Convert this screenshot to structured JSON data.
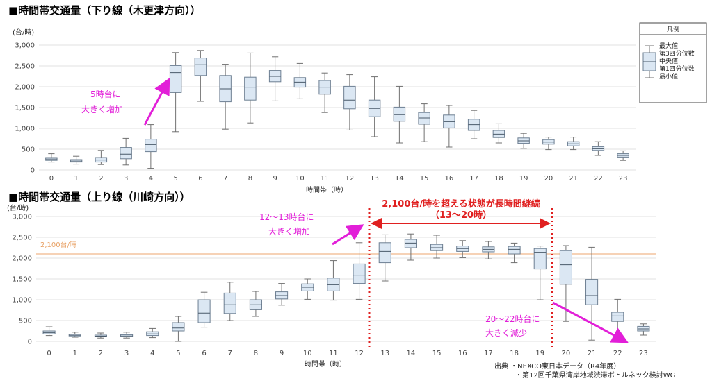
{
  "charts": [
    {
      "type": "box",
      "title": "■時間帯交通量（下り線（木更津方向））",
      "unit": "(台/時)",
      "xlabel": "時間帯（時）",
      "ylim": [
        0,
        3000
      ],
      "yticks": [
        0,
        500,
        1000,
        1500,
        2000,
        2500,
        3000
      ],
      "ytick_labels": [
        "0",
        "500",
        "1,000",
        "1,500",
        "2,000",
        "2,500",
        "3,000"
      ],
      "categories": [
        "0",
        "1",
        "2",
        "3",
        "4",
        "5",
        "6",
        "7",
        "8",
        "9",
        "10",
        "11",
        "12",
        "13",
        "14",
        "15",
        "16",
        "17",
        "18",
        "19",
        "20",
        "21",
        "22",
        "23"
      ],
      "boxes": [
        {
          "min": 190,
          "q1": 230,
          "median": 265,
          "q3": 300,
          "max": 390
        },
        {
          "min": 140,
          "q1": 190,
          "median": 215,
          "q3": 250,
          "max": 330
        },
        {
          "min": 130,
          "q1": 190,
          "median": 240,
          "q3": 300,
          "max": 470
        },
        {
          "min": 120,
          "q1": 270,
          "median": 380,
          "q3": 540,
          "max": 760
        },
        {
          "min": 40,
          "q1": 440,
          "median": 610,
          "q3": 740,
          "max": 1090
        },
        {
          "min": 920,
          "q1": 1860,
          "median": 2340,
          "q3": 2510,
          "max": 2820
        },
        {
          "min": 1650,
          "q1": 2270,
          "median": 2530,
          "q3": 2690,
          "max": 2870
        },
        {
          "min": 980,
          "q1": 1640,
          "median": 1950,
          "q3": 2270,
          "max": 2540
        },
        {
          "min": 1130,
          "q1": 1680,
          "median": 1990,
          "q3": 2230,
          "max": 2810
        },
        {
          "min": 1660,
          "q1": 2120,
          "median": 2250,
          "q3": 2390,
          "max": 2720
        },
        {
          "min": 1710,
          "q1": 1990,
          "median": 2110,
          "q3": 2220,
          "max": 2560
        },
        {
          "min": 1380,
          "q1": 1820,
          "median": 1990,
          "q3": 2150,
          "max": 2330
        },
        {
          "min": 960,
          "q1": 1470,
          "median": 1680,
          "q3": 2010,
          "max": 2290
        },
        {
          "min": 800,
          "q1": 1280,
          "median": 1480,
          "q3": 1680,
          "max": 2240
        },
        {
          "min": 650,
          "q1": 1170,
          "median": 1330,
          "q3": 1510,
          "max": 2010
        },
        {
          "min": 680,
          "q1": 1100,
          "median": 1250,
          "q3": 1380,
          "max": 1590
        },
        {
          "min": 550,
          "q1": 1010,
          "median": 1160,
          "q3": 1320,
          "max": 1550
        },
        {
          "min": 750,
          "q1": 950,
          "median": 1090,
          "q3": 1220,
          "max": 1430
        },
        {
          "min": 650,
          "q1": 780,
          "median": 860,
          "q3": 950,
          "max": 1110
        },
        {
          "min": 520,
          "q1": 640,
          "median": 700,
          "q3": 770,
          "max": 880
        },
        {
          "min": 490,
          "q1": 620,
          "median": 670,
          "q3": 730,
          "max": 790
        },
        {
          "min": 490,
          "q1": 580,
          "median": 630,
          "q3": 680,
          "max": 790
        },
        {
          "min": 350,
          "q1": 470,
          "median": 510,
          "q3": 560,
          "max": 680
        },
        {
          "min": 230,
          "q1": 310,
          "median": 350,
          "q3": 390,
          "max": 460
        }
      ],
      "annotations": [
        {
          "text_lines": [
            "5時台に",
            "大きく増加"
          ]
        }
      ],
      "legend": {
        "title": "凡例",
        "items": [
          "最大値",
          "第3四分位数",
          "中央値",
          "第1四分位数",
          "最小値"
        ]
      }
    },
    {
      "type": "box",
      "title": "■時間帯交通量（上り線（川崎方向））",
      "unit": "(台/時)",
      "xlabel": "時間帯（時）",
      "ylim": [
        0,
        3000
      ],
      "yticks": [
        0,
        500,
        1000,
        1500,
        2000,
        2500,
        3000
      ],
      "ytick_labels": [
        "0",
        "500",
        "1,000",
        "1,500",
        "2,000",
        "2,500",
        "3,000"
      ],
      "categories": [
        "0",
        "1",
        "2",
        "3",
        "4",
        "5",
        "6",
        "7",
        "8",
        "9",
        "10",
        "11",
        "12",
        "13",
        "14",
        "15",
        "16",
        "17",
        "18",
        "19",
        "20",
        "21",
        "22",
        "23"
      ],
      "reference_line": {
        "value": 2100,
        "label": "2,100台/時"
      },
      "boxes": [
        {
          "min": 140,
          "q1": 180,
          "median": 210,
          "q3": 250,
          "max": 350
        },
        {
          "min": 100,
          "q1": 130,
          "median": 150,
          "q3": 175,
          "max": 220
        },
        {
          "min": 80,
          "q1": 110,
          "median": 125,
          "q3": 150,
          "max": 200
        },
        {
          "min": 80,
          "q1": 110,
          "median": 130,
          "q3": 160,
          "max": 220
        },
        {
          "min": 90,
          "q1": 140,
          "median": 180,
          "q3": 230,
          "max": 310
        },
        {
          "min": 0,
          "q1": 250,
          "median": 320,
          "q3": 450,
          "max": 600
        },
        {
          "min": 340,
          "q1": 450,
          "median": 680,
          "q3": 1000,
          "max": 1180
        },
        {
          "min": 500,
          "q1": 670,
          "median": 880,
          "q3": 1160,
          "max": 1420
        },
        {
          "min": 600,
          "q1": 760,
          "median": 880,
          "q3": 1000,
          "max": 1200
        },
        {
          "min": 870,
          "q1": 1020,
          "median": 1100,
          "q3": 1190,
          "max": 1390
        },
        {
          "min": 1010,
          "q1": 1210,
          "median": 1300,
          "q3": 1380,
          "max": 1500
        },
        {
          "min": 990,
          "q1": 1210,
          "median": 1360,
          "q3": 1520,
          "max": 1940
        },
        {
          "min": 1010,
          "q1": 1390,
          "median": 1590,
          "q3": 1860,
          "max": 2370
        },
        {
          "min": 1450,
          "q1": 1890,
          "median": 2160,
          "q3": 2370,
          "max": 2560
        },
        {
          "min": 1950,
          "q1": 2250,
          "median": 2360,
          "q3": 2450,
          "max": 2580
        },
        {
          "min": 2000,
          "q1": 2180,
          "median": 2250,
          "q3": 2330,
          "max": 2550
        },
        {
          "min": 2010,
          "q1": 2160,
          "median": 2230,
          "q3": 2290,
          "max": 2420
        },
        {
          "min": 1980,
          "q1": 2150,
          "median": 2210,
          "q3": 2270,
          "max": 2400
        },
        {
          "min": 1890,
          "q1": 2100,
          "median": 2210,
          "q3": 2280,
          "max": 2360
        },
        {
          "min": 1000,
          "q1": 1740,
          "median": 2140,
          "q3": 2230,
          "max": 2290
        },
        {
          "min": 480,
          "q1": 1370,
          "median": 1840,
          "q3": 2180,
          "max": 2300
        },
        {
          "min": 30,
          "q1": 880,
          "median": 1100,
          "q3": 1490,
          "max": 2260
        },
        {
          "min": 30,
          "q1": 480,
          "median": 610,
          "q3": 700,
          "max": 1010
        },
        {
          "min": 150,
          "q1": 250,
          "median": 300,
          "q3": 360,
          "max": 420
        }
      ],
      "annotations": [
        {
          "text_lines": [
            "12～13時台に",
            "大きく増加"
          ]
        },
        {
          "text_lines": [
            "2,100台/時を超える状態が長時間継続",
            "（13～20時）"
          ]
        },
        {
          "text_lines": [
            "20～22時台に",
            "大きく減少"
          ]
        }
      ],
      "source": [
        "出典 ・NEXCO東日本データ（R4年度）",
        "・第12回千葉県湾岸地域渋滞ボトルネック検討WG"
      ]
    }
  ],
  "colors": {
    "box_fill": "#dbe7f3",
    "box_stroke": "#6d7f92",
    "whisker": "#707070",
    "grid": "#e2e2e2",
    "accent_magenta": "#e21fd8",
    "accent_red": "#e02020",
    "reference": "#f0b78a"
  }
}
